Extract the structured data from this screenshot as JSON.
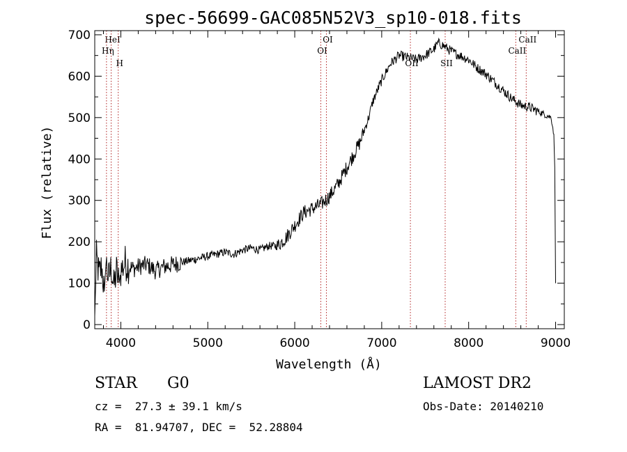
{
  "chart_data": {
    "type": "line",
    "title": "spec-56699-GAC085N52V3_sp10-018.fits",
    "xlabel": "Wavelength (Å)",
    "ylabel": "Flux (relative)",
    "xlim": [
      3700,
      9100
    ],
    "ylim": [
      -10,
      710
    ],
    "xticks": [
      4000,
      5000,
      6000,
      7000,
      8000,
      9000
    ],
    "yticks": [
      0,
      100,
      200,
      300,
      400,
      500,
      600,
      700
    ],
    "series": [
      {
        "x": [
          3700,
          3720,
          3750,
          3780,
          3810,
          3830,
          3860,
          3890,
          3920,
          3950,
          3980,
          4000,
          4050,
          4100,
          4150,
          4200,
          4300,
          4400,
          4500,
          4600,
          4700,
          4800,
          4900,
          5000,
          5100,
          5200,
          5300,
          5400,
          5500,
          5600,
          5700,
          5800,
          5900,
          6000,
          6100,
          6200,
          6300,
          6350,
          6400,
          6500,
          6600,
          6700,
          6750,
          6800,
          6850,
          6900,
          7000,
          7100,
          7200,
          7300,
          7400,
          7500,
          7600,
          7650,
          7700,
          7800,
          7900,
          8000,
          8100,
          8200,
          8300,
          8400,
          8500,
          8600,
          8700,
          8800,
          8900,
          8950,
          8980,
          8990,
          9000
        ],
        "y": [
          20,
          160,
          120,
          140,
          80,
          150,
          110,
          140,
          90,
          130,
          100,
          130,
          150,
          140,
          135,
          140,
          145,
          130,
          140,
          145,
          150,
          155,
          160,
          165,
          170,
          175,
          170,
          180,
          185,
          180,
          190,
          190,
          210,
          240,
          270,
          280,
          290,
          300,
          310,
          340,
          380,
          420,
          440,
          470,
          500,
          540,
          590,
          630,
          650,
          645,
          640,
          650,
          665,
          680,
          675,
          660,
          650,
          640,
          620,
          605,
          585,
          565,
          545,
          530,
          525,
          515,
          505,
          500,
          460,
          380,
          100
        ]
      }
    ],
    "line_markers": [
      {
        "label": "HeI",
        "x": 3889,
        "level": 1
      },
      {
        "label": "Hη",
        "x": 3835,
        "level": 2
      },
      {
        "label": "H",
        "x": 3970,
        "level": 3
      },
      {
        "label": "OI",
        "x": 6364,
        "level": 1
      },
      {
        "label": "OI",
        "x": 6300,
        "level": 2
      },
      {
        "label": "OII",
        "x": 7330,
        "level": 3
      },
      {
        "label": "SII",
        "x": 7730,
        "level": 3
      },
      {
        "label": "CaII",
        "x": 8662,
        "level": 1
      },
      {
        "label": "CaII",
        "x": 8542,
        "level": 2
      }
    ],
    "grid": false,
    "legend": "none"
  },
  "info": {
    "object_class": "STAR",
    "subclass": "G0",
    "redshift": "cz =  27.3 ± 39.1 km/s",
    "coords": "RA =  81.94707, DEC =  52.28804",
    "survey": "LAMOST DR2",
    "obs_date": "Obs-Date: 20140210"
  },
  "colors": {
    "spectrum": "#000000",
    "marker": "#b02020",
    "axis": "#000000"
  }
}
